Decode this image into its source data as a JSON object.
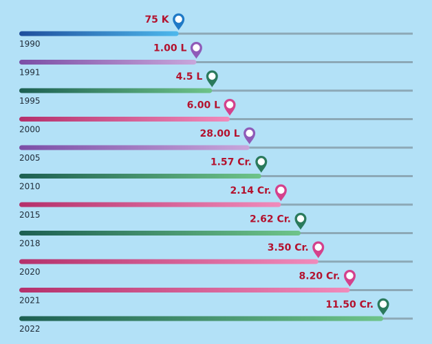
{
  "chart_data": {
    "type": "bar",
    "orientation": "horizontal",
    "title": "",
    "xlabel": "",
    "ylabel": "",
    "grid": false,
    "categories": [
      "1990",
      "1991",
      "1995",
      "2000",
      "2005",
      "2010",
      "2015",
      "2018",
      "2020",
      "2021",
      "2022"
    ],
    "value_labels": [
      "75 K",
      "1.00 L",
      "4.5 L",
      "6.00 L",
      "28.00 L",
      "1.57 Cr.",
      "2.14 Cr.",
      "2.62 Cr.",
      "3.50 Cr.",
      "8.20 Cr.",
      "11.50 Cr."
    ],
    "values": [
      75000,
      100000,
      450000,
      600000,
      2800000,
      15700000,
      21400000,
      26200000,
      35000000,
      82000000,
      115000000
    ],
    "scale": "ordinal-rank",
    "bar_levels": [
      0.405,
      0.45,
      0.49,
      0.535,
      0.585,
      0.615,
      0.665,
      0.715,
      0.76,
      0.84,
      0.925
    ],
    "colors": [
      "blue",
      "purple",
      "green",
      "pink",
      "purple",
      "green",
      "pink",
      "green",
      "pink",
      "pink",
      "green"
    ]
  },
  "palette": {
    "blue": {
      "start": "#1f4e9c",
      "end": "#4db8ec",
      "pin": "#1f79c6"
    },
    "purple": {
      "start": "#7b4ea6",
      "end": "#c8a6db",
      "pin": "#8f5bb8"
    },
    "green": {
      "start": "#1c5f52",
      "end": "#6ec489",
      "pin": "#2a7a5c"
    },
    "pink": {
      "start": "#b5306b",
      "end": "#f08bbb",
      "pin": "#d4418c"
    },
    "track": "#8ca8b6",
    "label_color": "#b3122e",
    "year_color": "#1e2a36",
    "background": "#b3e1f7"
  }
}
